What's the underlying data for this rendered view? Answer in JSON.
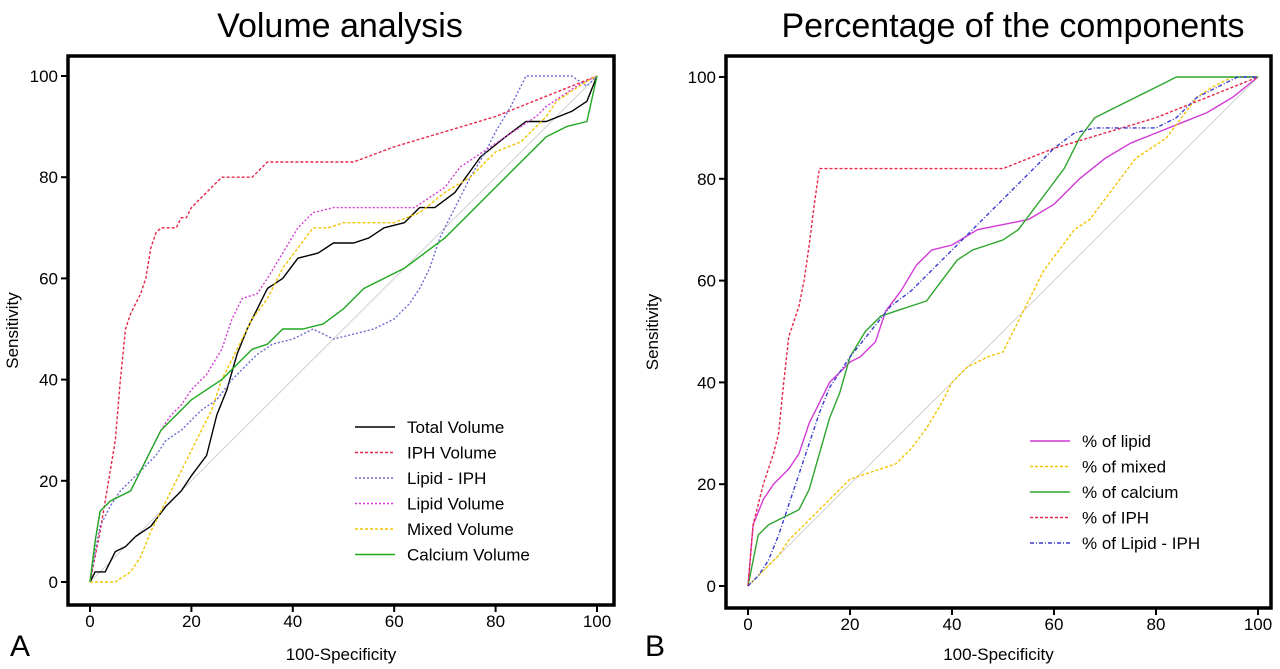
{
  "panels": [
    {
      "panel_label": "A",
      "chart_data": {
        "type": "line",
        "title": "Volume analysis",
        "xlabel": "100-Specificity",
        "ylabel": "Sensitivity",
        "xlim": [
          0,
          100
        ],
        "ylim": [
          0,
          100
        ],
        "xticks": [
          "0",
          "20",
          "40",
          "60",
          "80",
          "100"
        ],
        "yticks": [
          "0",
          "20",
          "40",
          "60",
          "80",
          "100"
        ],
        "legend_position": "bottom-right",
        "series": [
          {
            "name": "Total Volume",
            "color": "#000000",
            "dash": "",
            "x": [
              0,
              1,
              3,
              5,
              7,
              9,
              12,
              15,
              18,
              20,
              23,
              25,
              27,
              29,
              31,
              33,
              35,
              38,
              41,
              45,
              48,
              52,
              55,
              58,
              62,
              65,
              68,
              72,
              77,
              82,
              86,
              90,
              95,
              98,
              100
            ],
            "y": [
              0,
              2,
              2,
              6,
              7,
              9,
              11,
              15,
              18,
              21,
              25,
              33,
              38,
              45,
              50,
              54,
              58,
              60,
              64,
              65,
              67,
              67,
              68,
              70,
              71,
              74,
              74,
              77,
              84,
              88,
              91,
              91,
              93,
              95,
              100
            ]
          },
          {
            "name": "IPH Volume",
            "color": "#e8264a",
            "dash": "3,2",
            "x": [
              0,
              1,
              2,
              3,
              4,
              5,
              6,
              7,
              8,
              9,
              10,
              11,
              12,
              13,
              14,
              15,
              16,
              17,
              18,
              19,
              20,
              22,
              24,
              26,
              28,
              30,
              32,
              35,
              40,
              45,
              50,
              52,
              60,
              70,
              80,
              90,
              100
            ],
            "y": [
              0,
              5,
              10,
              16,
              22,
              28,
              40,
              50,
              53,
              55,
              57,
              60,
              66,
              69,
              70,
              70,
              70,
              70,
              72,
              72,
              74,
              76,
              78,
              80,
              80,
              80,
              80,
              83,
              83,
              83,
              83,
              83,
              86,
              89,
              92,
              96,
              100
            ]
          },
          {
            "name": "Lipid - IPH",
            "color": "#6b6bd4",
            "dash": "2,2",
            "x": [
              0,
              1,
              2,
              4,
              6,
              8,
              10,
              13,
              15,
              18,
              20,
              22,
              25,
              28,
              30,
              33,
              36,
              40,
              44,
              48,
              52,
              56,
              60,
              63,
              65,
              67,
              69,
              72,
              75,
              78,
              80,
              83,
              86,
              88,
              90,
              92,
              95,
              98,
              100
            ],
            "y": [
              0,
              6,
              11,
              15,
              18,
              20,
              22,
              25,
              28,
              30,
              32,
              34,
              36,
              40,
              42,
              45,
              47,
              48,
              50,
              48,
              49,
              50,
              52,
              55,
              58,
              62,
              68,
              74,
              80,
              85,
              89,
              94,
              100,
              100,
              100,
              100,
              100,
              98,
              100
            ]
          },
          {
            "name": "Lipid Volume",
            "color": "#d23ad6",
            "dash": "2,2",
            "x": [
              0,
              1,
              2,
              4,
              6,
              8,
              10,
              12,
              14,
              16,
              18,
              20,
              23,
              26,
              28,
              30,
              33,
              35,
              38,
              41,
              44,
              48,
              52,
              56,
              60,
              64,
              67,
              70,
              73,
              76,
              79,
              82,
              85,
              88,
              90,
              93,
              96,
              100
            ],
            "y": [
              0,
              8,
              14,
              16,
              17,
              18,
              22,
              26,
              30,
              33,
              35,
              38,
              41,
              46,
              52,
              56,
              57,
              60,
              65,
              70,
              73,
              74,
              74,
              74,
              74,
              74,
              76,
              78,
              82,
              84,
              86,
              88,
              90,
              92,
              94,
              96,
              98,
              100
            ]
          },
          {
            "name": "Mixed Volume",
            "color": "#f2c400",
            "dash": "3,2",
            "x": [
              0,
              2,
              5,
              8,
              10,
              12,
              14,
              16,
              18,
              20,
              22,
              24,
              26,
              28,
              30,
              32,
              35,
              38,
              41,
              44,
              47,
              50,
              55,
              60,
              65,
              70,
              75,
              80,
              85,
              88,
              90,
              92,
              95,
              98,
              100
            ],
            "y": [
              0,
              0,
              0,
              2,
              5,
              10,
              14,
              18,
              22,
              26,
              30,
              34,
              40,
              44,
              48,
              52,
              56,
              62,
              66,
              70,
              70,
              71,
              71,
              71,
              73,
              77,
              80,
              85,
              87,
              90,
              92,
              95,
              97,
              99,
              100
            ]
          },
          {
            "name": "Calcium Volume",
            "color": "#1fa81f",
            "dash": "",
            "x": [
              0,
              1,
              2,
              4,
              6,
              8,
              10,
              12,
              14,
              16,
              18,
              20,
              23,
              26,
              29,
              32,
              35,
              38,
              42,
              46,
              50,
              54,
              58,
              62,
              66,
              70,
              74,
              78,
              82,
              86,
              90,
              94,
              98,
              100
            ],
            "y": [
              0,
              8,
              14,
              16,
              17,
              18,
              22,
              26,
              30,
              32,
              34,
              36,
              38,
              40,
              43,
              46,
              47,
              50,
              50,
              51,
              54,
              58,
              60,
              62,
              65,
              68,
              72,
              76,
              80,
              84,
              88,
              90,
              91,
              100
            ]
          }
        ]
      }
    },
    {
      "panel_label": "B",
      "chart_data": {
        "type": "line",
        "title": "Percentage of the components",
        "xlabel": "100-Specificity",
        "ylabel": "Sensitivity",
        "xlim": [
          0,
          100
        ],
        "ylim": [
          0,
          100
        ],
        "xticks": [
          "0",
          "20",
          "40",
          "60",
          "80",
          "100"
        ],
        "yticks": [
          "0",
          "20",
          "40",
          "60",
          "80",
          "100"
        ],
        "legend_position": "bottom-right",
        "series": [
          {
            "name": "% of lipid",
            "color": "#d23ad6",
            "dash": "",
            "x": [
              0,
              1,
              3,
              5,
              8,
              10,
              12,
              14,
              16,
              18,
              20,
              22,
              25,
              27,
              30,
              33,
              36,
              40,
              45,
              50,
              55,
              60,
              65,
              70,
              75,
              80,
              85,
              90,
              95,
              100
            ],
            "y": [
              0,
              12,
              17,
              20,
              23,
              26,
              32,
              36,
              40,
              42,
              44,
              45,
              48,
              54,
              58,
              63,
              66,
              67,
              70,
              71,
              72,
              75,
              80,
              84,
              87,
              89,
              91,
              93,
              96,
              100
            ]
          },
          {
            "name": "% of mixed",
            "color": "#f2c400",
            "dash": "3,2",
            "x": [
              0,
              2,
              4,
              6,
              8,
              10,
              12,
              15,
              18,
              20,
              23,
              26,
              29,
              32,
              35,
              38,
              40,
              43,
              47,
              50,
              52,
              55,
              58,
              61,
              64,
              67,
              70,
              73,
              76,
              79,
              82,
              85,
              88,
              91,
              95,
              100
            ],
            "y": [
              0,
              2,
              4,
              6,
              9,
              11,
              13,
              16,
              19,
              21,
              22,
              23,
              24,
              27,
              31,
              36,
              40,
              43,
              45,
              46,
              50,
              56,
              62,
              66,
              70,
              72,
              76,
              80,
              84,
              86,
              88,
              92,
              96,
              98,
              100,
              100
            ]
          },
          {
            "name": "% of calcium",
            "color": "#2ea52e",
            "dash": "",
            "x": [
              0,
              2,
              4,
              6,
              8,
              10,
              12,
              14,
              16,
              18,
              20,
              23,
              26,
              29,
              32,
              35,
              38,
              41,
              44,
              47,
              50,
              53,
              56,
              59,
              62,
              65,
              68,
              72,
              76,
              80,
              84,
              88,
              92,
              96,
              100
            ],
            "y": [
              0,
              10,
              12,
              13,
              14,
              15,
              19,
              26,
              33,
              38,
              45,
              50,
              53,
              54,
              55,
              56,
              60,
              64,
              66,
              67,
              68,
              70,
              74,
              78,
              82,
              88,
              92,
              94,
              96,
              98,
              100,
              100,
              100,
              100,
              100
            ]
          },
          {
            "name": "% of IPH",
            "color": "#e8264a",
            "dash": "3,2",
            "x": [
              0,
              1,
              2,
              3,
              4,
              5,
              6,
              7,
              8,
              9,
              10,
              11,
              12,
              13,
              14,
              20,
              30,
              40,
              50,
              60,
              70,
              80,
              90,
              100
            ],
            "y": [
              0,
              12,
              16,
              20,
              23,
              26,
              30,
              40,
              49,
              52,
              55,
              60,
              67,
              75,
              82,
              82,
              82,
              82,
              82,
              86,
              89,
              92,
              96,
              100
            ]
          },
          {
            "name": "% of Lipid - IPH",
            "color": "#3a3ad0",
            "dash": "4,2,1,2",
            "x": [
              0,
              2,
              4,
              6,
              8,
              10,
              12,
              14,
              16,
              18,
              20,
              24,
              28,
              32,
              36,
              40,
              44,
              48,
              52,
              56,
              60,
              64,
              68,
              72,
              76,
              80,
              84,
              88,
              92,
              96,
              100
            ],
            "y": [
              0,
              2,
              5,
              10,
              16,
              22,
              28,
              34,
              39,
              42,
              45,
              50,
              55,
              58,
              62,
              66,
              70,
              74,
              78,
              82,
              86,
              89,
              90,
              90,
              90,
              90,
              92,
              96,
              98,
              100,
              100
            ]
          }
        ]
      }
    }
  ]
}
